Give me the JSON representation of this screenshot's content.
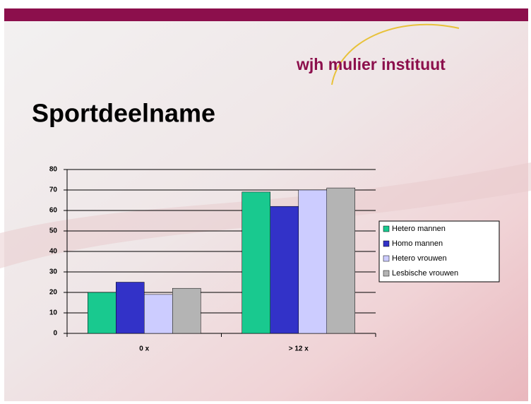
{
  "logo": "wjh mulier instituut",
  "chart_data": {
    "type": "bar",
    "title": "Sportdeelname",
    "categories": [
      "0 x",
      "> 12 x"
    ],
    "series": [
      {
        "name": "Hetero mannen",
        "color": "#19c98f",
        "values": [
          20,
          69
        ]
      },
      {
        "name": "Homo mannen",
        "color": "#3232c8",
        "values": [
          25,
          62
        ]
      },
      {
        "name": "Hetero vrouwen",
        "color": "#ccccff",
        "values": [
          19,
          70
        ]
      },
      {
        "name": "Lesbische vrouwen",
        "color": "#b4b4b4",
        "values": [
          22,
          71
        ]
      }
    ],
    "ylim": [
      0,
      80
    ],
    "yticks": [
      0,
      10,
      20,
      30,
      40,
      50,
      60,
      70,
      80
    ],
    "grid": true,
    "legend": "right"
  }
}
